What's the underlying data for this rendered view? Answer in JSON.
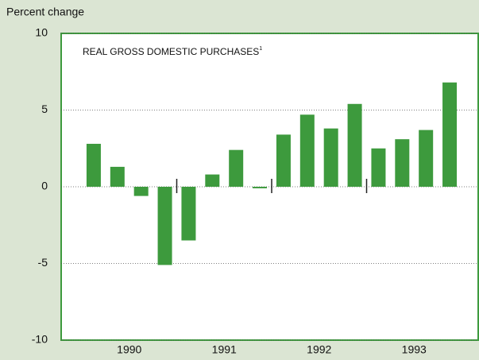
{
  "chart_data": {
    "type": "bar",
    "title": "REAL GROSS DOMESTIC PURCHASES",
    "title_footnote": "1",
    "y_label": "Percent change",
    "groups": [
      {
        "label": "1990",
        "values": [
          2.8,
          1.3,
          -0.6,
          -5.1
        ]
      },
      {
        "label": "1991",
        "values": [
          -3.5,
          0.8,
          2.4,
          -0.1
        ]
      },
      {
        "label": "1992",
        "values": [
          3.4,
          4.7,
          3.8,
          5.4
        ]
      },
      {
        "label": "1993",
        "values": [
          2.5,
          3.1,
          3.7,
          6.8
        ]
      }
    ],
    "color": "#3d9a3d",
    "ylim": [
      -10,
      10
    ],
    "yticks": [
      -10,
      -5,
      0,
      5,
      10
    ],
    "grid": true
  }
}
